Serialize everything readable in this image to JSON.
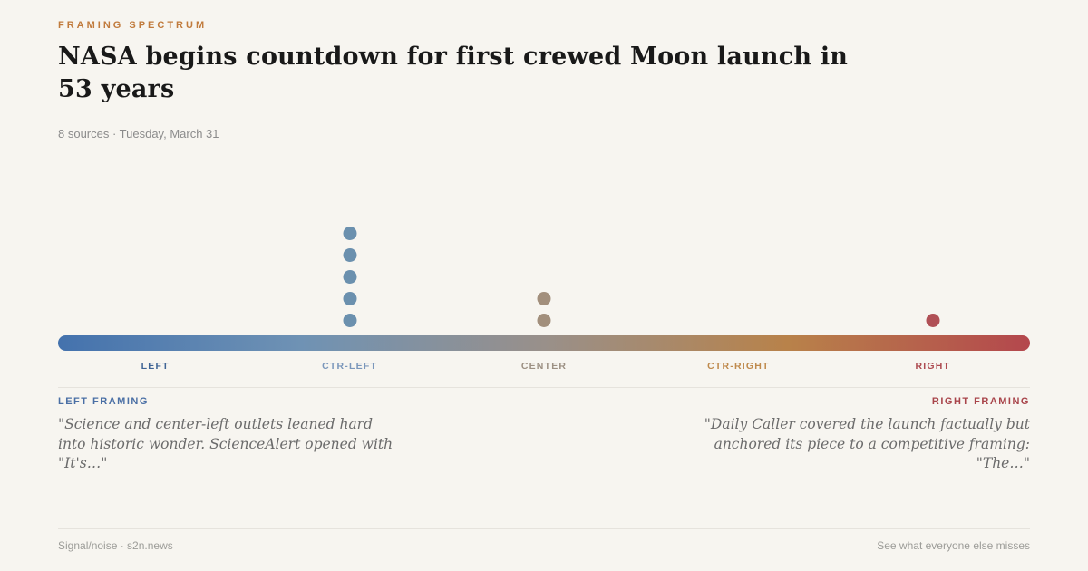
{
  "header": {
    "eyebrow": "FRAMING SPECTRUM",
    "title": "NASA begins countdown for first crewed Moon launch in 53 years",
    "meta": "8 sources · Tuesday, March 31"
  },
  "chart_data": {
    "type": "scatter",
    "title": "Framing Spectrum",
    "description": "Dot plot of 8 news sources placed along a political-framing spectrum axis",
    "total_sources": 8,
    "axis_categories": [
      "LEFT",
      "CTR-LEFT",
      "CENTER",
      "CTR-RIGHT",
      "RIGHT"
    ],
    "positions": [
      {
        "label": "LEFT",
        "pos_pct": 10,
        "count": 0,
        "dot_color": "#6b90ae",
        "label_color": "#3f6495"
      },
      {
        "label": "CTR-LEFT",
        "pos_pct": 30,
        "count": 5,
        "dot_color": "#6b90ae",
        "label_color": "#7b97bb"
      },
      {
        "label": "CENTER",
        "pos_pct": 50,
        "count": 2,
        "dot_color": "#a28f7c",
        "label_color": "#9c9083"
      },
      {
        "label": "CTR-RIGHT",
        "pos_pct": 70,
        "count": 0,
        "dot_color": "#bf8a4d",
        "label_color": "#bf8a4d"
      },
      {
        "label": "RIGHT",
        "pos_pct": 90,
        "count": 1,
        "dot_color": "#b05056",
        "label_color": "#ad4a50"
      }
    ],
    "bar_gradient": [
      "#4472ad",
      "#6f92b4",
      "#99908a",
      "#b8824a",
      "#b4474d"
    ],
    "legend": "none",
    "grid": "off"
  },
  "framing": {
    "left": {
      "label": "LEFT FRAMING",
      "quote": "\"Science and center-left outlets leaned hard into historic wonder. ScienceAlert opened with \"It's…\""
    },
    "right": {
      "label": "RIGHT FRAMING",
      "quote": "\"Daily Caller covered the launch factually but anchored its piece to a competitive framing: \"The…\""
    }
  },
  "footer": {
    "brand": "Signal/noise · s2n.news",
    "tagline": "See what everyone else misses"
  },
  "colors": {
    "background": "#f7f5f0",
    "eyebrow": "#c17b3d",
    "title": "#191919",
    "meta": "#8b8b8b",
    "divider": "#e6e3dd",
    "left_accent": "#4a6fa5",
    "right_accent": "#a8444a",
    "footer_text": "#9c9c98"
  }
}
